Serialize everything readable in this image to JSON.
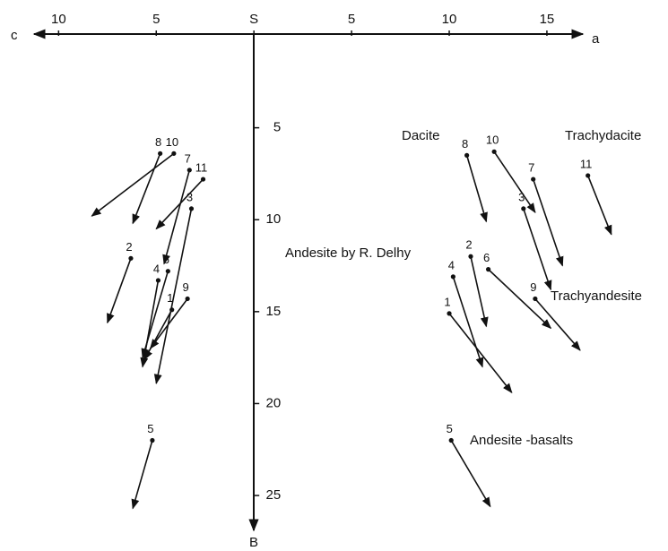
{
  "chart_data": {
    "type": "vector",
    "axis_left_label": "c",
    "axis_right_label": "a",
    "axis_down_label": "B",
    "xlim": [
      -13,
      21.2
    ],
    "ylim": [
      0,
      26.8
    ],
    "xticks": [
      {
        "value": -10,
        "label": "10"
      },
      {
        "value": -5,
        "label": "5"
      },
      {
        "value": 0,
        "label": "S"
      },
      5,
      10,
      15
    ],
    "yticks": [
      5,
      10,
      15,
      20,
      25
    ],
    "color": "#111111",
    "series": [
      {
        "vectors": [
          {
            "label": "8",
            "start": [
              -4.8,
              6.4
            ],
            "end": [
              -6.2,
              10.2
            ]
          },
          {
            "label": "10",
            "start": [
              -4.1,
              6.4
            ],
            "end": [
              -8.3,
              9.8
            ]
          },
          {
            "label": "7",
            "start": [
              -3.3,
              7.3
            ],
            "end": [
              -4.6,
              12.4
            ]
          },
          {
            "label": "11",
            "start": [
              -2.6,
              7.8
            ],
            "end": [
              -5.0,
              10.5
            ]
          },
          {
            "label": "3",
            "start": [
              -3.2,
              9.4
            ],
            "end": [
              -5.0,
              18.9
            ]
          },
          {
            "label": "2",
            "start": [
              -6.3,
              12.1
            ],
            "end": [
              -7.5,
              15.6
            ]
          },
          {
            "label": "4",
            "start": [
              -4.9,
              13.3
            ],
            "end": [
              -5.7,
              18.0
            ]
          },
          {
            "label": "6",
            "start": [
              -4.4,
              12.8
            ],
            "end": [
              -5.7,
              17.5
            ]
          },
          {
            "label": "9",
            "start": [
              -3.4,
              14.3
            ],
            "end": [
              -5.3,
              17.0
            ]
          },
          {
            "label": "1",
            "start": [
              -4.2,
              14.9
            ],
            "end": [
              -5.6,
              17.6
            ]
          },
          {
            "label": "5",
            "start": [
              -5.2,
              22.0
            ],
            "end": [
              -6.2,
              25.7
            ]
          }
        ]
      },
      {
        "vectors": [
          {
            "label": "8",
            "start": [
              10.9,
              6.5
            ],
            "end": [
              11.9,
              10.1
            ]
          },
          {
            "label": "10",
            "start": [
              12.3,
              6.3
            ],
            "end": [
              14.4,
              9.6
            ]
          },
          {
            "label": "7",
            "start": [
              14.3,
              7.8
            ],
            "end": [
              15.8,
              12.5
            ]
          },
          {
            "label": "11",
            "start": [
              17.1,
              7.6
            ],
            "end": [
              18.3,
              10.8
            ]
          },
          {
            "label": "3",
            "start": [
              13.8,
              9.4
            ],
            "end": [
              15.2,
              13.8
            ]
          },
          {
            "label": "2",
            "start": [
              11.1,
              12.0
            ],
            "end": [
              11.9,
              15.8
            ]
          },
          {
            "label": "4",
            "start": [
              10.2,
              13.1
            ],
            "end": [
              11.7,
              18.0
            ]
          },
          {
            "label": "6",
            "start": [
              12.0,
              12.7
            ],
            "end": [
              15.2,
              15.9
            ]
          },
          {
            "label": "9",
            "start": [
              14.4,
              14.3
            ],
            "end": [
              16.7,
              17.1
            ]
          },
          {
            "label": "1",
            "start": [
              10.0,
              15.1
            ],
            "end": [
              13.2,
              19.4
            ]
          },
          {
            "label": "5",
            "start": [
              10.1,
              22.0
            ],
            "end": [
              12.1,
              25.6
            ]
          }
        ]
      }
    ],
    "annotations": [
      "Dacite",
      "Trachydacite",
      "Andesite by R. Delhy",
      "Trachyandesite",
      "Andesite -basalts"
    ]
  }
}
